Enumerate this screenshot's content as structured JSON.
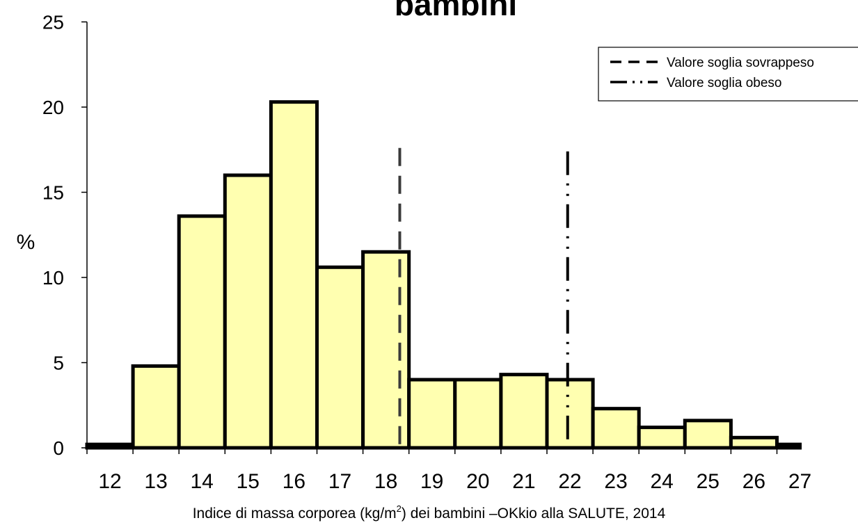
{
  "chart_data": {
    "type": "bar",
    "title": "bambini",
    "ylabel": "%",
    "xlabel": {
      "before": "Indice di massa corporea (kg/m",
      "superscript": "2",
      "after": ") dei bambini –OKkio alla SALUTE, 2014"
    },
    "ylim": [
      0,
      25
    ],
    "yticks": [
      "0",
      "5",
      "10",
      "15",
      "20",
      "25"
    ],
    "xlim": [
      12,
      27
    ],
    "xticks": [
      "12",
      "13",
      "14",
      "15",
      "16",
      "17",
      "18",
      "19",
      "20",
      "21",
      "22",
      "23",
      "24",
      "25",
      "26",
      "27"
    ],
    "bins": [
      {
        "from": 12,
        "to": 13,
        "value": 0.2
      },
      {
        "from": 13,
        "to": 14,
        "value": 4.8
      },
      {
        "from": 14,
        "to": 15,
        "value": 13.6
      },
      {
        "from": 15,
        "to": 16,
        "value": 16.0
      },
      {
        "from": 16,
        "to": 17,
        "value": 20.3
      },
      {
        "from": 17,
        "to": 18,
        "value": 10.6
      },
      {
        "from": 18,
        "to": 19,
        "value": 11.5
      },
      {
        "from": 19,
        "to": 20,
        "value": 4.0
      },
      {
        "from": 20,
        "to": 21,
        "value": 4.0
      },
      {
        "from": 21,
        "to": 22,
        "value": 4.3
      },
      {
        "from": 22,
        "to": 23,
        "value": 4.0
      },
      {
        "from": 23,
        "to": 24,
        "value": 2.3
      },
      {
        "from": 24,
        "to": 25,
        "value": 1.2
      },
      {
        "from": 25,
        "to": 26,
        "value": 1.6
      },
      {
        "from": 26,
        "to": 27,
        "value": 0.6
      },
      {
        "from": 27,
        "to": 27.5,
        "value": 0.2
      }
    ],
    "bar_color": "#ffffb0",
    "threshold_lines": [
      {
        "name": "Valore soglia sovrappeso",
        "x": 18.8,
        "top": 17.6,
        "style": "dashed",
        "color": "#3a3a3a"
      },
      {
        "name": "Valore soglia obeso",
        "x": 22.45,
        "top": 17.4,
        "style": "dash-dot-dot",
        "color": "#000000"
      }
    ],
    "legend_position": "top-right",
    "grid": false
  }
}
